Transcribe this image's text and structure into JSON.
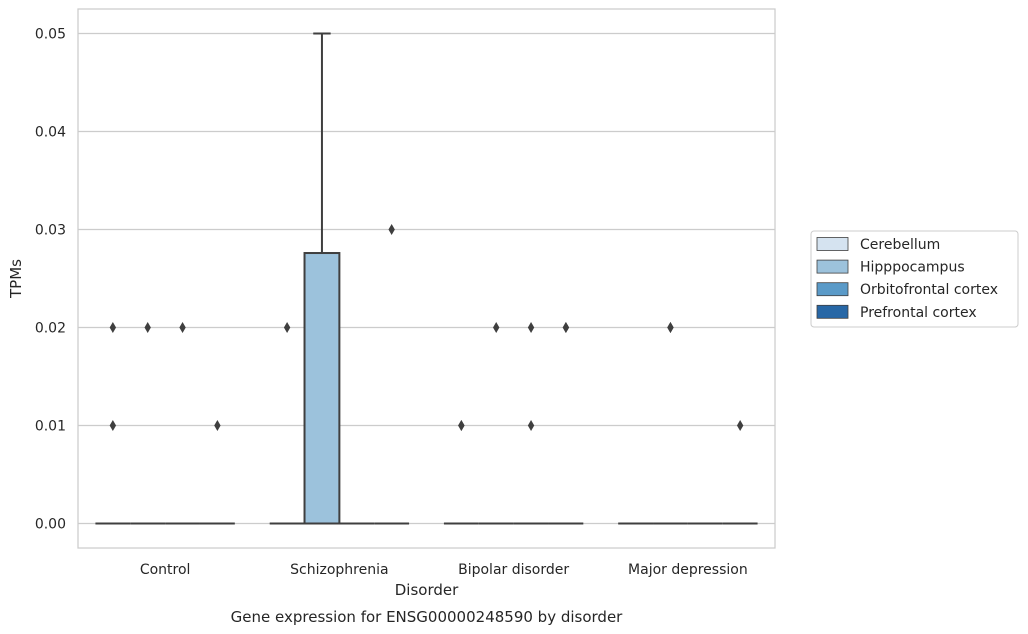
{
  "chart_data": {
    "type": "box",
    "caption": "Gene expression for ENSG00000248590 by disorder",
    "xlabel": "Disorder",
    "ylabel": "TPMs",
    "ylim": [
      -0.0025,
      0.0525
    ],
    "yticks": [
      "0.00",
      "0.01",
      "0.02",
      "0.03",
      "0.04",
      "0.05"
    ],
    "yticks_values": [
      0.0,
      0.01,
      0.02,
      0.03,
      0.04,
      0.05
    ],
    "grid": true,
    "legend_position": "right",
    "categories": [
      "Control",
      "Schizophrenia",
      "Bipolar disorder",
      "Major depression"
    ],
    "series": [
      {
        "name": "Cerebellum",
        "color": "#d5e3f0",
        "boxes": [
          {
            "category": "Control",
            "q1": 0,
            "median": 0,
            "q3": 0,
            "whisker_low": 0,
            "whisker_high": 0,
            "outliers": [
              0.02,
              0.01
            ]
          },
          {
            "category": "Schizophrenia",
            "q1": 0,
            "median": 0,
            "q3": 0,
            "whisker_low": 0,
            "whisker_high": 0,
            "outliers": [
              0.02
            ]
          },
          {
            "category": "Bipolar disorder",
            "q1": 0,
            "median": 0,
            "q3": 0,
            "whisker_low": 0,
            "whisker_high": 0,
            "outliers": [
              0.01,
              0.01
            ]
          },
          {
            "category": "Major depression",
            "q1": 0,
            "median": 0,
            "q3": 0,
            "whisker_low": 0,
            "whisker_high": 0,
            "outliers": []
          }
        ]
      },
      {
        "name": "Hipppocampus",
        "color": "#9cc2dc",
        "boxes": [
          {
            "category": "Control",
            "q1": 0,
            "median": 0,
            "q3": 0,
            "whisker_low": 0,
            "whisker_high": 0,
            "outliers": [
              0.02
            ]
          },
          {
            "category": "Schizophrenia",
            "q1": 0,
            "median": 0,
            "q3": 0.0276,
            "whisker_low": 0,
            "whisker_high": 0.05,
            "outliers": []
          },
          {
            "category": "Bipolar disorder",
            "q1": 0,
            "median": 0,
            "q3": 0,
            "whisker_low": 0,
            "whisker_high": 0,
            "outliers": [
              0.02
            ]
          },
          {
            "category": "Major depression",
            "q1": 0,
            "median": 0,
            "q3": 0,
            "whisker_low": 0,
            "whisker_high": 0,
            "outliers": [
              0.02,
              0.02
            ]
          }
        ]
      },
      {
        "name": "Orbitofrontal cortex",
        "color": "#5a9ac8",
        "boxes": [
          {
            "category": "Control",
            "q1": 0,
            "median": 0,
            "q3": 0,
            "whisker_low": 0,
            "whisker_high": 0,
            "outliers": [
              0.02
            ]
          },
          {
            "category": "Schizophrenia",
            "q1": 0,
            "median": 0,
            "q3": 0,
            "whisker_low": 0,
            "whisker_high": 0,
            "outliers": []
          },
          {
            "category": "Bipolar disorder",
            "q1": 0,
            "median": 0,
            "q3": 0,
            "whisker_low": 0,
            "whisker_high": 0,
            "outliers": [
              0.02,
              0.01
            ]
          },
          {
            "category": "Major depression",
            "q1": 0,
            "median": 0,
            "q3": 0,
            "whisker_low": 0,
            "whisker_high": 0,
            "outliers": []
          }
        ]
      },
      {
        "name": "Prefrontal cortex",
        "color": "#2767a6",
        "boxes": [
          {
            "category": "Control",
            "q1": 0,
            "median": 0,
            "q3": 0,
            "whisker_low": 0,
            "whisker_high": 0,
            "outliers": [
              0.01
            ]
          },
          {
            "category": "Schizophrenia",
            "q1": 0,
            "median": 0,
            "q3": 0,
            "whisker_low": 0,
            "whisker_high": 0,
            "outliers": [
              0.03
            ]
          },
          {
            "category": "Bipolar disorder",
            "q1": 0,
            "median": 0,
            "q3": 0,
            "whisker_low": 0,
            "whisker_high": 0,
            "outliers": [
              0.02,
              0.02
            ]
          },
          {
            "category": "Major depression",
            "q1": 0,
            "median": 0,
            "q3": 0,
            "whisker_low": 0,
            "whisker_high": 0,
            "outliers": [
              0.01
            ]
          }
        ]
      }
    ]
  }
}
